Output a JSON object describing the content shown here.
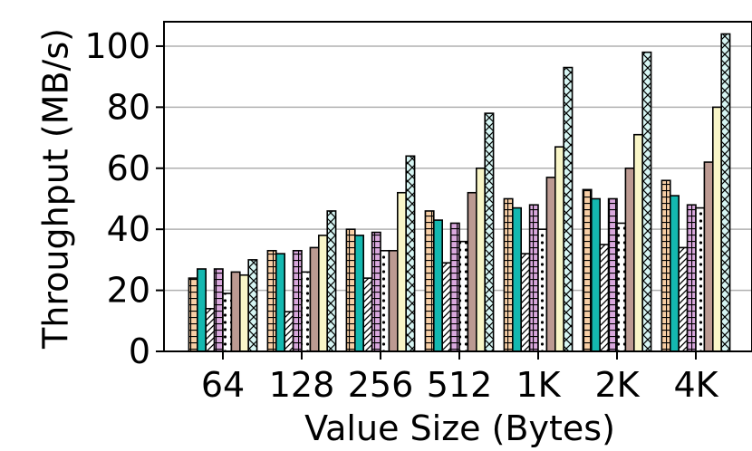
{
  "chart_data": {
    "type": "bar",
    "title": "",
    "xlabel": "Value Size (Bytes)",
    "ylabel": "Throughput (MB/s)",
    "ylim": [
      0,
      108
    ],
    "yticks": [
      0,
      20,
      40,
      60,
      80,
      100
    ],
    "ytick_labels": [
      "0",
      "20",
      "40",
      "60",
      "80",
      "100"
    ],
    "grid": "horizontal",
    "legend": "none",
    "categories": [
      "64",
      "128",
      "256",
      "512",
      "1K",
      "2K",
      "4K"
    ],
    "series": [
      {
        "values": [
          24,
          33,
          40,
          46,
          50,
          53,
          56
        ],
        "color": "#f8cfa6",
        "hatch": "grid"
      },
      {
        "values": [
          27,
          32,
          38,
          43,
          47,
          50,
          51
        ],
        "color": "#14b8b0",
        "hatch": "none"
      },
      {
        "values": [
          14,
          13,
          24,
          29,
          32,
          35,
          34
        ],
        "color": "#ffffff",
        "hatch": "diagonal"
      },
      {
        "values": [
          27,
          33,
          39,
          42,
          48,
          50,
          48
        ],
        "color": "#d9a8dd",
        "hatch": "grid"
      },
      {
        "values": [
          19,
          26,
          33,
          36,
          40,
          42,
          47
        ],
        "color": "#ffffff",
        "hatch": "dots"
      },
      {
        "values": [
          26,
          34,
          33,
          52,
          57,
          60,
          62
        ],
        "color": "#bc9a92",
        "hatch": "none"
      },
      {
        "values": [
          25,
          38,
          52,
          60,
          67,
          71,
          80
        ],
        "color": "#f9f6c8",
        "hatch": "none"
      },
      {
        "values": [
          30,
          46,
          64,
          78,
          93,
          98,
          104
        ],
        "color": "#d6f5f3",
        "hatch": "zigzag"
      }
    ]
  }
}
